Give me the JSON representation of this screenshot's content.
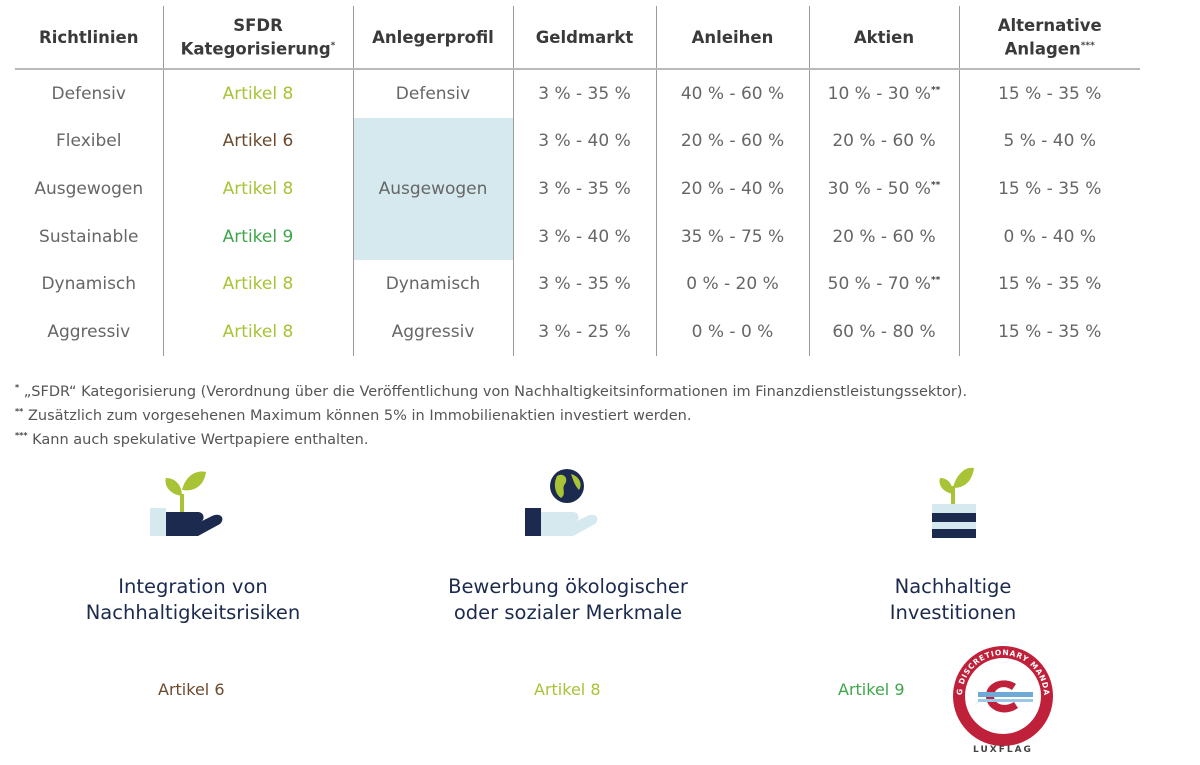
{
  "table": {
    "headers": [
      {
        "line1": "Richtlinien",
        "line2": "",
        "mark": ""
      },
      {
        "line1": "SFDR",
        "line2": "Kategorisierung",
        "mark": "*"
      },
      {
        "line1": "Anlegerprofil",
        "line2": "",
        "mark": ""
      },
      {
        "line1": "Geldmarkt",
        "line2": "",
        "mark": ""
      },
      {
        "line1": "Anleihen",
        "line2": "",
        "mark": ""
      },
      {
        "line1": "Aktien",
        "line2": "",
        "mark": ""
      },
      {
        "line1": "Alternative",
        "line2": "Anlagen",
        "mark": "***"
      }
    ],
    "rows": [
      {
        "richtlinie": "Defensiv",
        "sfdr": "Artikel 8",
        "sfdr_color": "#a8c335",
        "profile": "Defensiv",
        "geldmarkt": "3 % - 35 %",
        "anleihen": "40 % - 60 %",
        "aktien": "10 % - 30 %",
        "aktien_mark": "**",
        "alternative": "15 % - 35 %"
      },
      {
        "richtlinie": "Flexibel",
        "sfdr": "Artikel 6",
        "sfdr_color": "#6b4a2e",
        "profile": "",
        "geldmarkt": "3 % - 40 %",
        "anleihen": "20 % - 60 %",
        "aktien": "20 % - 60 %",
        "aktien_mark": "",
        "alternative": "5 % - 40 %"
      },
      {
        "richtlinie": "Ausgewogen",
        "sfdr": "Artikel 8",
        "sfdr_color": "#a8c335",
        "profile": "Ausgewogen",
        "geldmarkt": "3 % - 35 %",
        "anleihen": "20 % - 40 %",
        "aktien": "30 % - 50 %",
        "aktien_mark": "**",
        "alternative": "15 % - 35 %"
      },
      {
        "richtlinie": "Sustainable",
        "sfdr": "Artikel 9",
        "sfdr_color": "#3ea64a",
        "profile": "",
        "geldmarkt": "3 % - 40 %",
        "anleihen": "35 % - 75 %",
        "aktien": "20 % - 60 %",
        "aktien_mark": "",
        "alternative": "0 % - 40 %"
      },
      {
        "richtlinie": "Dynamisch",
        "sfdr": "Artikel 8",
        "sfdr_color": "#a8c335",
        "profile": "Dynamisch",
        "geldmarkt": "3 % - 35 %",
        "anleihen": "0 % - 20 %",
        "aktien": "50 % - 70 %",
        "aktien_mark": "**",
        "alternative": "15 % - 35 %"
      },
      {
        "richtlinie": "Aggressiv",
        "sfdr": "Artikel 8",
        "sfdr_color": "#a8c335",
        "profile": "Aggressiv",
        "geldmarkt": "3 % - 25 %",
        "anleihen": "0 % - 0 %",
        "aktien": "60 % - 80 %",
        "aktien_mark": "",
        "alternative": "15 % - 35 %"
      }
    ]
  },
  "footnotes": [
    {
      "mark": "*",
      "text": "„SFDR“ Kategorisierung (Verordnung über die Veröffentlichung von Nachhaltigkeitsinformationen im Finanzdienstleistungssektor)."
    },
    {
      "mark": "**",
      "text": "Zusätzlich zum vorgesehenen Maximum können 5% in Immobilienaktien investiert werden."
    },
    {
      "mark": "***",
      "text": "Kann auch spekulative Wertpapiere enthalten."
    }
  ],
  "pillars": [
    {
      "title_line1": "Integration von",
      "title_line2": "Nachhaltigkeitsrisiken",
      "article": "Artikel 6",
      "article_color": "#6b4a2e",
      "icon": "plant-in-hand-icon"
    },
    {
      "title_line1": "Bewerbung ökologischer",
      "title_line2": "oder sozialer Merkmale",
      "article": "Artikel 8",
      "article_color": "#a8c335",
      "icon": "globe-in-hand-icon"
    },
    {
      "title_line1": "Nachhaltige",
      "title_line2": "Investitionen",
      "article": "Artikel 9",
      "article_color": "#3ea64a",
      "icon": "plant-on-stack-icon"
    }
  ],
  "badge": {
    "top_text": "ESG DISCRETIONARY MANDATE",
    "bottom_text": "LUXFLAG",
    "icon": "luxflag-esg-badge-icon"
  },
  "colors": {
    "navy": "#1b2a4e",
    "light_blue": "#d5e9ee",
    "green_leaf": "#a8c335"
  }
}
